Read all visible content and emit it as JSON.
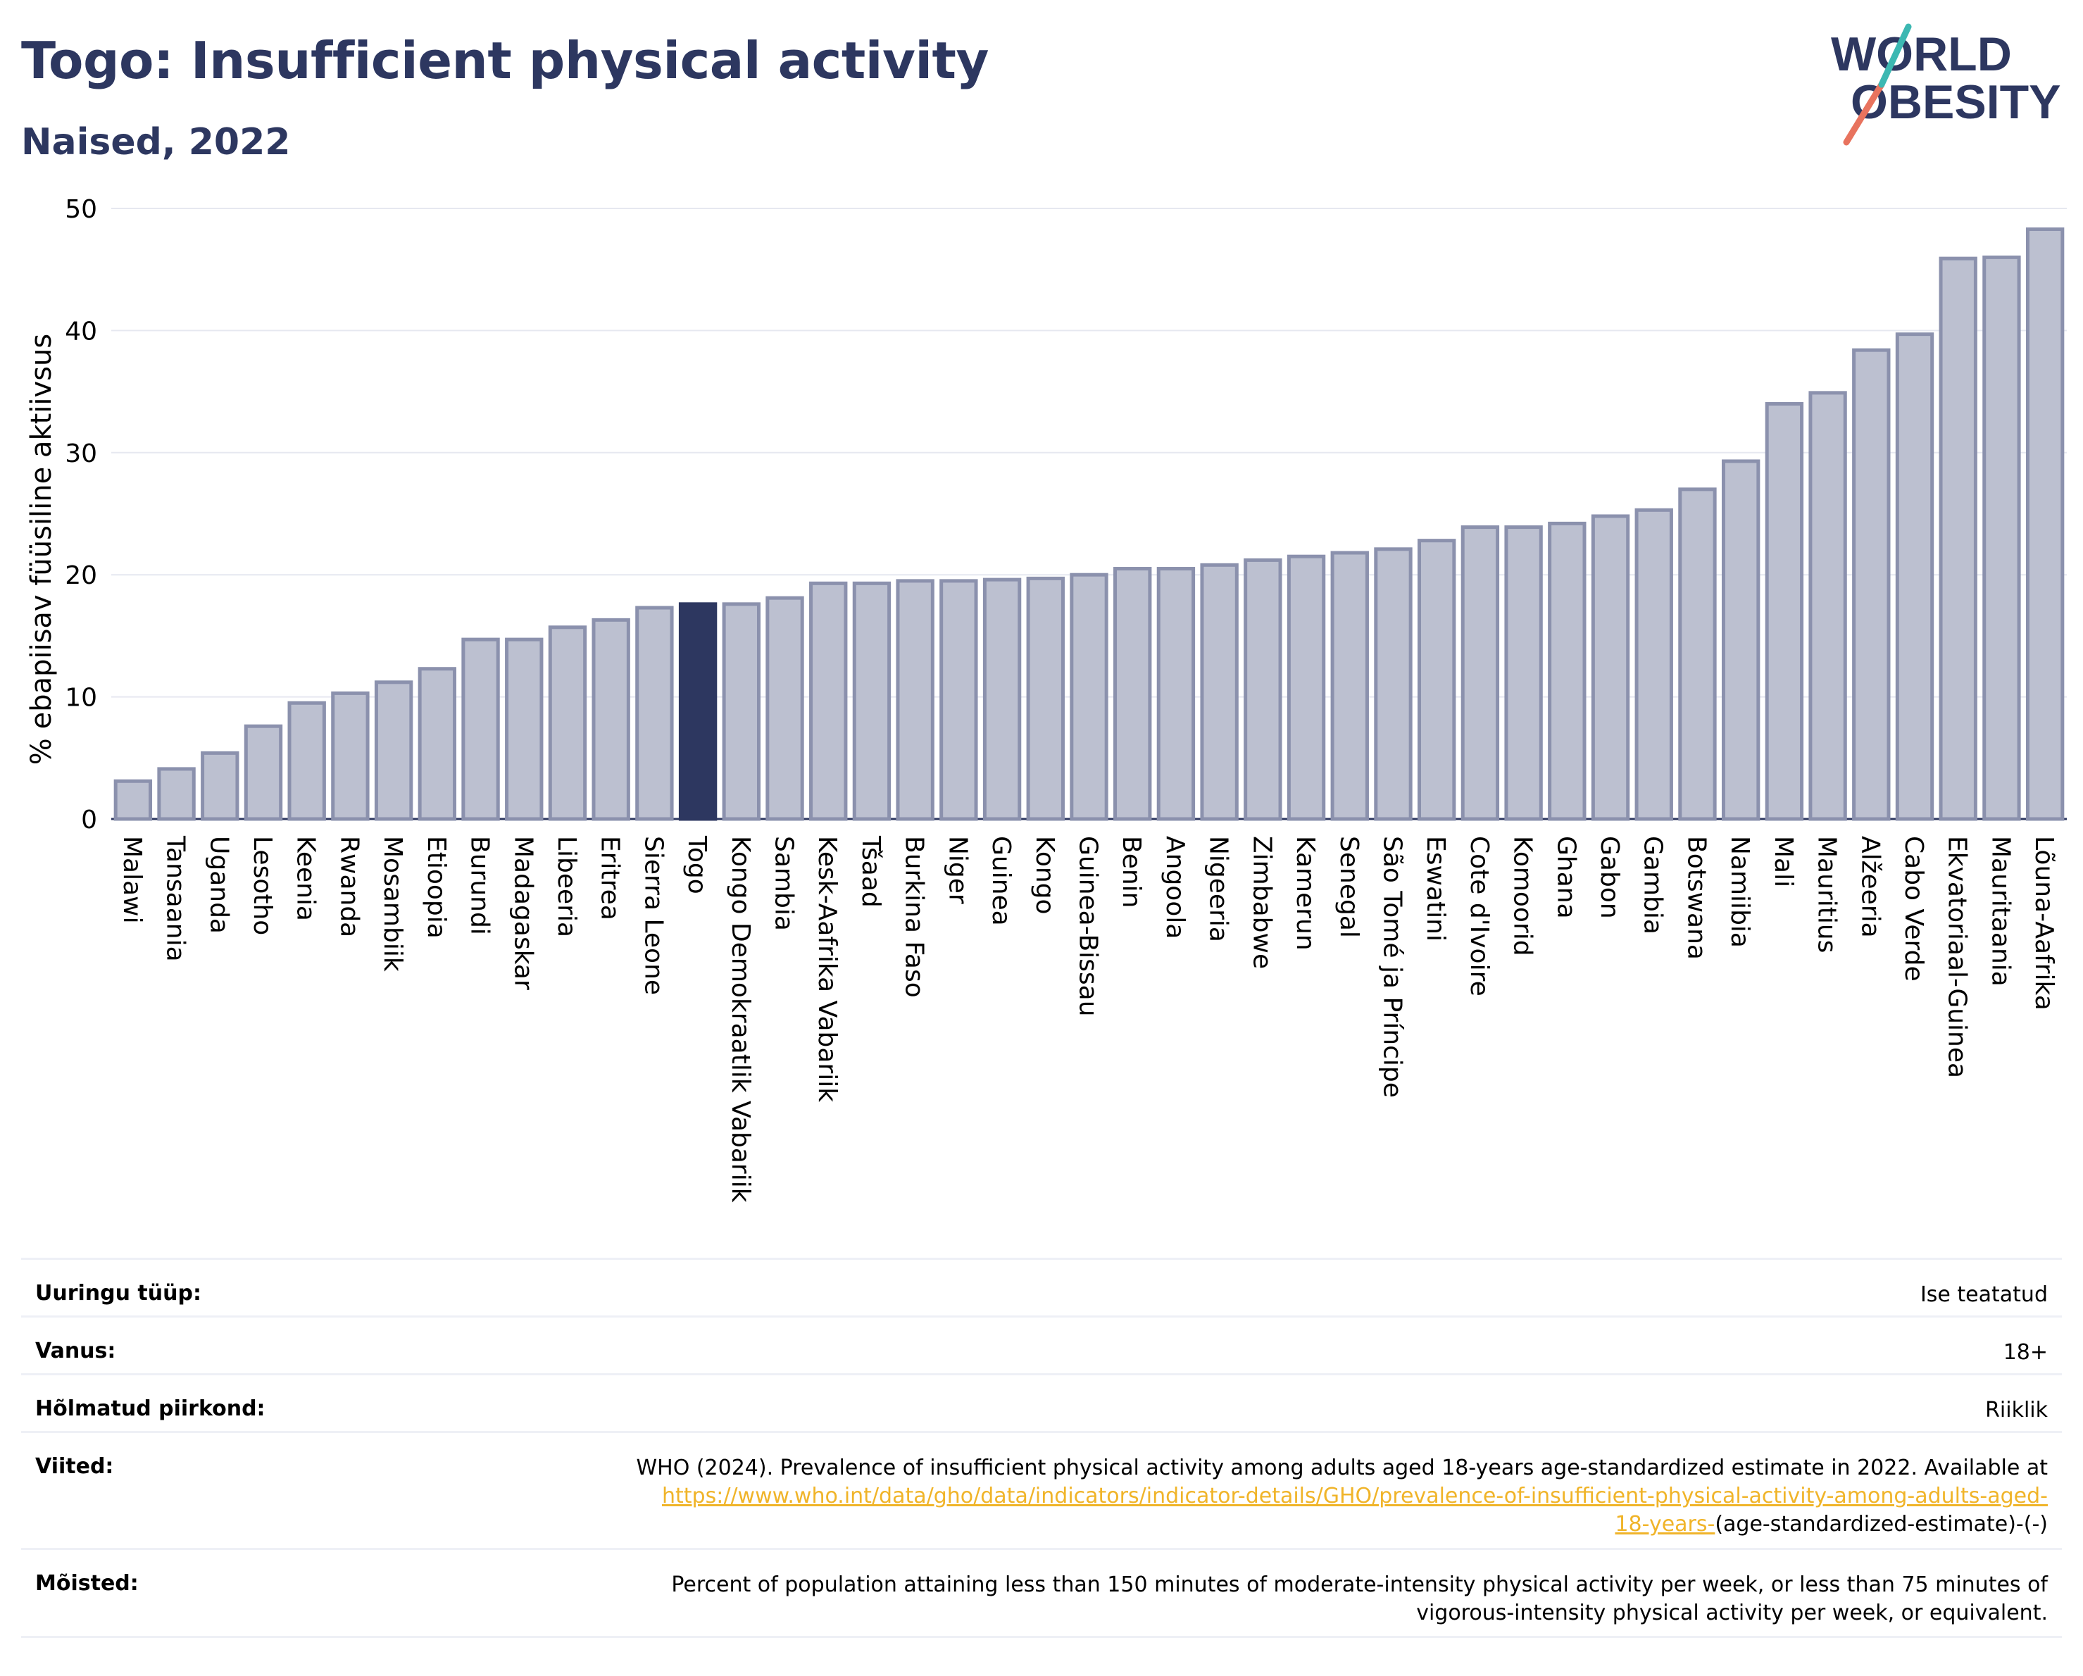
{
  "title": "Togo: Insufficient physical activity",
  "subtitle": "Naised, 2022",
  "logo": {
    "line1": "WORLD",
    "line2": "OBESITY"
  },
  "colors": {
    "bar": "#bcc0d0",
    "bar_stroke": "#8b91ad",
    "highlight": "#2d3760",
    "title": "#2d3760",
    "grid": "#e6e8f0",
    "link": "#f0b429"
  },
  "chart_data": {
    "type": "bar",
    "ylabel": "% ebapiisav füüsiline aktiivsus",
    "xlabel": "",
    "ylim": [
      0,
      50
    ],
    "yticks": [
      0,
      10,
      20,
      30,
      40,
      50
    ],
    "grid": true,
    "highlight": "Togo",
    "categories": [
      "Malawi",
      "Tansaania",
      "Uganda",
      "Lesotho",
      "Keenia",
      "Rwanda",
      "Mosambiik",
      "Etioopia",
      "Burundi",
      "Madagaskar",
      "Libeeria",
      "Eritrea",
      "Sierra Leone",
      "Togo",
      "Kongo Demokraatlik Vabariik",
      "Sambia",
      "Kesk-Aafrika Vabariik",
      "Tšaad",
      "Burkina Faso",
      "Niger",
      "Guinea",
      "Kongo",
      "Guinea-Bissau",
      "Benin",
      "Angoola",
      "Nigeeria",
      "Zimbabwe",
      "Kamerun",
      "Senegal",
      "São Tomé ja Príncipe",
      "Eswatini",
      "Cote d'Ivoire",
      "Komoorid",
      "Ghana",
      "Gabon",
      "Gambia",
      "Botswana",
      "Namiibia",
      "Mali",
      "Mauritius",
      "Alžeeria",
      "Cabo Verde",
      "Ekvatoriaal-Guinea",
      "Mauritaania",
      "Lõuna-Aafrika"
    ],
    "values": [
      3.1,
      4.1,
      5.4,
      7.6,
      9.5,
      10.3,
      11.2,
      12.3,
      14.7,
      14.7,
      15.7,
      16.3,
      17.3,
      17.6,
      17.6,
      18.1,
      19.3,
      19.3,
      19.5,
      19.5,
      19.6,
      19.7,
      20.0,
      20.5,
      20.5,
      20.8,
      21.2,
      21.5,
      21.8,
      22.1,
      22.8,
      23.9,
      23.9,
      24.2,
      24.8,
      25.3,
      27.0,
      29.3,
      34.0,
      34.9,
      38.4,
      39.7,
      45.9,
      46.0,
      48.3
    ]
  },
  "meta": [
    {
      "key": "Uuringu tüüp:",
      "value": "Ise teatatud"
    },
    {
      "key": "Vanus:",
      "value": "18+"
    },
    {
      "key": "Hõlmatud piirkond:",
      "value": "Riiklik"
    },
    {
      "key": "Viited:",
      "value_line1": "WHO (2024). Prevalence of insufficient physical activity among adults aged 18-years age-standardized estimate in 2022. Available at",
      "link_line1": "https://www.who.int/data/gho/data/indicators/indicator-details/GHO/prevalence-of-insufficient-physical-activity-among-adults-aged-",
      "link_line2": "18-years-",
      "value_tail": "(age-standardized-estimate)-(-)"
    },
    {
      "key": "Mõisted:",
      "value_line1": "Percent of population attaining less than 150 minutes of moderate-intensity physical activity per week, or less than 75 minutes of",
      "value_line2": "vigorous-intensity physical activity per week, or equivalent."
    }
  ]
}
